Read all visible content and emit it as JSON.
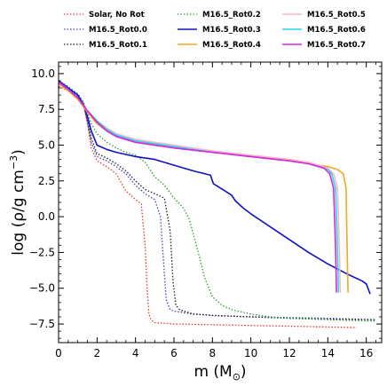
{
  "chart_data": {
    "type": "line",
    "xlabel": "m (M⊙)",
    "xlabel_parts": {
      "main": "m (M",
      "sub": "⊙",
      "end": ")"
    },
    "ylabel": "log (ρ/g cm⁻³)",
    "ylabel_parts": {
      "main": "log (ρ/g cm",
      "sup": "−3",
      "end": ")"
    },
    "xlim": [
      0,
      16.8
    ],
    "ylim": [
      -8.8,
      10.8
    ],
    "xticks": [
      0,
      2,
      4,
      6,
      8,
      10,
      12,
      14,
      16
    ],
    "yticks": [
      -7.5,
      -5.0,
      -2.5,
      0.0,
      2.5,
      5.0,
      7.5,
      10.0
    ],
    "ytick_labels": [
      "−7.5",
      "−5.0",
      "−2.5",
      "0.0",
      "2.5",
      "5.0",
      "7.5",
      "10.0"
    ],
    "grid": false,
    "legend_placement": "top",
    "series": [
      {
        "name": "Solar, No Rot",
        "color": "#e8332b",
        "dash": "1.5,2",
        "width": 1.3,
        "x": [
          0,
          0.5,
          1,
          1.3,
          1.5,
          1.7,
          2.0,
          2.5,
          3.0,
          3.5,
          4.0,
          4.3,
          4.5,
          4.6,
          4.7,
          4.8,
          5,
          6,
          8,
          10,
          12,
          14,
          15.5
        ],
        "y": [
          9.1,
          8.8,
          8.3,
          7.8,
          6.5,
          4.8,
          3.9,
          3.5,
          3.0,
          1.8,
          1.2,
          0.9,
          -2.0,
          -5.0,
          -6.8,
          -7.2,
          -7.4,
          -7.5,
          -7.55,
          -7.6,
          -7.65,
          -7.7,
          -7.75
        ]
      },
      {
        "name": "M16.5_Rot0.0",
        "color": "#4b3bb5",
        "dash": "1.5,2",
        "width": 1.3,
        "x": [
          0,
          0.5,
          1,
          1.3,
          1.5,
          1.7,
          2.0,
          2.5,
          3.0,
          3.5,
          4.0,
          4.5,
          5.0,
          5.3,
          5.5,
          5.6,
          5.8,
          6,
          7,
          8,
          10,
          12,
          14,
          16.5
        ],
        "y": [
          9.3,
          8.9,
          8.4,
          7.8,
          6.6,
          5.2,
          4.2,
          3.9,
          3.5,
          3.0,
          2.2,
          1.6,
          1.2,
          0.0,
          -4.0,
          -5.8,
          -6.5,
          -6.6,
          -6.8,
          -6.9,
          -7.0,
          -7.05,
          -7.1,
          -7.2
        ]
      },
      {
        "name": "M16.5_Rot0.1",
        "color": "#1a1a3a",
        "dash": "1.5,2",
        "width": 1.3,
        "x": [
          0,
          0.5,
          1,
          1.3,
          1.5,
          1.7,
          2.0,
          2.5,
          3.0,
          3.5,
          4.0,
          4.5,
          5.0,
          5.5,
          5.8,
          5.95,
          6.1,
          6.3,
          7,
          8,
          10,
          12,
          14,
          16.5
        ],
        "y": [
          9.4,
          9.0,
          8.5,
          7.9,
          6.8,
          5.5,
          4.4,
          4.1,
          3.7,
          3.2,
          2.5,
          1.9,
          1.6,
          1.3,
          -1.0,
          -4.5,
          -6.2,
          -6.5,
          -6.8,
          -6.9,
          -7.0,
          -7.1,
          -7.15,
          -7.2
        ]
      },
      {
        "name": "M16.5_Rot0.2",
        "color": "#2e9a2e",
        "dash": "1.5,2",
        "width": 1.3,
        "x": [
          0,
          0.5,
          1,
          1.3,
          1.5,
          1.7,
          2.0,
          2.5,
          3.0,
          3.5,
          4.0,
          4.5,
          5.0,
          5.5,
          6.0,
          6.5,
          6.8,
          7.0,
          7.3,
          7.6,
          8.0,
          8.5,
          9,
          10,
          11,
          12,
          14,
          16.5
        ],
        "y": [
          9.5,
          9.1,
          8.6,
          8.0,
          7.2,
          6.5,
          5.8,
          5.2,
          4.8,
          4.5,
          4.3,
          3.8,
          2.8,
          2.2,
          1.3,
          0.6,
          -0.2,
          -1.2,
          -2.7,
          -4.3,
          -5.6,
          -6.2,
          -6.5,
          -6.8,
          -7.0,
          -7.1,
          -7.2,
          -7.3
        ]
      },
      {
        "name": "M16.5_Rot0.3",
        "color": "#1010c8",
        "dash": "",
        "width": 1.6,
        "x": [
          0,
          0.5,
          1,
          1.3,
          1.5,
          1.7,
          2.0,
          2.5,
          3.0,
          4.0,
          5.0,
          6.0,
          7.0,
          7.9,
          8.0,
          8.05,
          8.3,
          9.0,
          9.2,
          9.6,
          10,
          11,
          12,
          13,
          14,
          15,
          15.8,
          16.0,
          16.2
        ],
        "y": [
          9.5,
          9.0,
          8.5,
          7.8,
          7.0,
          6.0,
          5.0,
          4.7,
          4.5,
          4.2,
          4.0,
          3.6,
          3.2,
          2.9,
          2.5,
          2.3,
          2.1,
          1.5,
          1.1,
          0.6,
          0.2,
          -0.7,
          -1.6,
          -2.5,
          -3.3,
          -4.0,
          -4.5,
          -4.7,
          -5.4
        ]
      },
      {
        "name": "M16.5_Rot0.4",
        "color": "#f5a623",
        "dash": "",
        "width": 1.6,
        "x": [
          0,
          0.5,
          1,
          1.5,
          2.0,
          2.5,
          3.0,
          4,
          6,
          8,
          10,
          12,
          13,
          14,
          14.5,
          14.8,
          14.95,
          15.0,
          15.05
        ],
        "y": [
          9.3,
          8.8,
          8.2,
          7.3,
          6.5,
          6.0,
          5.6,
          5.2,
          4.8,
          4.5,
          4.2,
          3.9,
          3.7,
          3.5,
          3.3,
          3.0,
          2.0,
          -2.0,
          -5.3
        ]
      },
      {
        "name": "M16.5_Rot0.5",
        "color": "#f4b8c0",
        "dash": "",
        "width": 1.6,
        "x": [
          0,
          0.5,
          1,
          1.5,
          2.0,
          2.5,
          3.0,
          4,
          6,
          8,
          10,
          12,
          13,
          14,
          14.3,
          14.5,
          14.6,
          14.65
        ],
        "y": [
          9.4,
          8.9,
          8.3,
          7.4,
          6.7,
          6.2,
          5.8,
          5.4,
          5.0,
          4.6,
          4.3,
          4.0,
          3.8,
          3.4,
          3.0,
          2.0,
          -2.0,
          -5.3
        ]
      },
      {
        "name": "M16.5_Rot0.6",
        "color": "#28d7e8",
        "dash": "",
        "width": 1.6,
        "x": [
          0,
          0.5,
          1,
          1.5,
          2.0,
          2.5,
          3.0,
          4,
          6,
          8,
          10,
          12,
          13,
          14,
          14.2,
          14.4,
          14.5,
          14.55
        ],
        "y": [
          9.4,
          8.9,
          8.3,
          7.4,
          6.7,
          6.1,
          5.7,
          5.3,
          4.9,
          4.5,
          4.2,
          3.9,
          3.7,
          3.3,
          3.0,
          2.0,
          -2.0,
          -5.3
        ]
      },
      {
        "name": "M16.5_Rot0.7",
        "color": "#e023e0",
        "dash": "",
        "width": 1.6,
        "x": [
          0,
          0.5,
          1,
          1.5,
          2.0,
          2.5,
          3.0,
          4,
          6,
          8,
          10,
          12,
          13,
          13.8,
          14.1,
          14.3,
          14.4,
          14.45
        ],
        "y": [
          9.4,
          8.9,
          8.3,
          7.4,
          6.6,
          6.0,
          5.6,
          5.2,
          4.8,
          4.5,
          4.2,
          3.9,
          3.7,
          3.4,
          3.0,
          2.0,
          -2.0,
          -5.3
        ]
      }
    ]
  }
}
